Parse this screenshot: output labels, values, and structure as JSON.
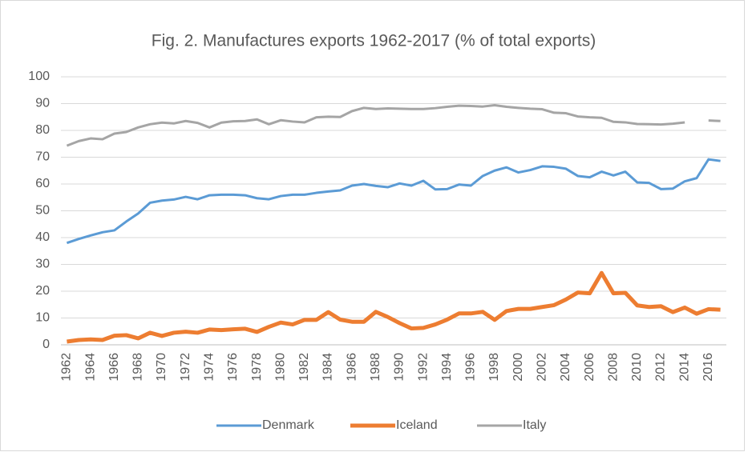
{
  "chart_data": {
    "type": "line",
    "title": "Fig. 2. Manufactures exports 1962-2017 (% of total exports)",
    "categories": [
      "1962",
      null,
      "1964",
      null,
      "1966",
      null,
      "1968",
      null,
      "1970",
      null,
      "1972",
      null,
      "1974",
      null,
      "1976",
      null,
      "1978",
      null,
      "1980",
      null,
      "1982",
      null,
      "1984",
      null,
      "1986",
      null,
      "1988",
      null,
      "1990",
      null,
      "1992",
      null,
      "1994",
      null,
      "1996",
      null,
      "1998",
      null,
      "2000",
      null,
      "2002",
      null,
      "2004",
      null,
      "2006",
      null,
      "2008",
      null,
      "2010",
      null,
      "2012",
      null,
      "2014",
      null,
      "2016",
      null
    ],
    "series": [
      {
        "name": "Denmark",
        "color": "#5b9bd5",
        "width": 3,
        "values": [
          38,
          39.5,
          40.8,
          42,
          42.7,
          46,
          49,
          53,
          53.8,
          54.2,
          55.2,
          54.3,
          55.8,
          56,
          56,
          55.8,
          54.7,
          54.3,
          55.5,
          56,
          56,
          56.7,
          57.2,
          57.6,
          59.4,
          60,
          59.3,
          58.8,
          60.2,
          59.4,
          61.2,
          58,
          58.1,
          59.8,
          59.4,
          63,
          65,
          66.2,
          64.3,
          65.2,
          66.6,
          66.4,
          65.7,
          63,
          62.5,
          64.6,
          63.2,
          64.6,
          60.6,
          60.4,
          58.1,
          58.3,
          61,
          62.2,
          69.2,
          68.6
        ]
      },
      {
        "name": "Iceland",
        "color": "#ed7d31",
        "width": 5,
        "values": [
          1.2,
          1.8,
          2,
          1.8,
          3.4,
          3.6,
          2.4,
          4.5,
          3.3,
          4.5,
          4.9,
          4.5,
          5.7,
          5.5,
          5.8,
          6,
          4.8,
          6.7,
          8.3,
          7.6,
          9.3,
          9.3,
          12.2,
          9.4,
          8.6,
          8.6,
          12.3,
          10.4,
          8.1,
          6.1,
          6.3,
          7.6,
          9.4,
          11.7,
          11.7,
          12.3,
          9.3,
          12.6,
          13.4,
          13.4,
          14.1,
          14.8,
          16.9,
          19.5,
          19.2,
          26.8,
          19.2,
          19.4,
          14.7,
          14.1,
          14.4,
          12.2,
          13.9,
          11.6,
          13.3,
          13.1
        ]
      },
      {
        "name": "Italy",
        "color": "#a5a5a5",
        "width": 3,
        "values": [
          74.3,
          76,
          77,
          76.7,
          78.8,
          79.4,
          81.1,
          82.3,
          82.9,
          82.6,
          83.5,
          82.8,
          81.1,
          82.9,
          83.4,
          83.5,
          84.1,
          82.3,
          83.8,
          83.3,
          83,
          84.9,
          85.1,
          85,
          87.2,
          88.4,
          88,
          88.2,
          88.1,
          88,
          88,
          88.3,
          88.8,
          89.2,
          89.1,
          88.9,
          89.4,
          88.8,
          88.4,
          88.1,
          87.9,
          86.6,
          86.4,
          85.2,
          84.9,
          84.7,
          83.2,
          83,
          82.4,
          82.3,
          82.2,
          82.5,
          83,
          null,
          83.7,
          83.5
        ]
      }
    ],
    "ylim": [
      0,
      100
    ],
    "yticks": [
      0,
      10,
      20,
      30,
      40,
      50,
      60,
      70,
      80,
      90,
      100
    ],
    "grid": true,
    "legend": "bottom"
  }
}
